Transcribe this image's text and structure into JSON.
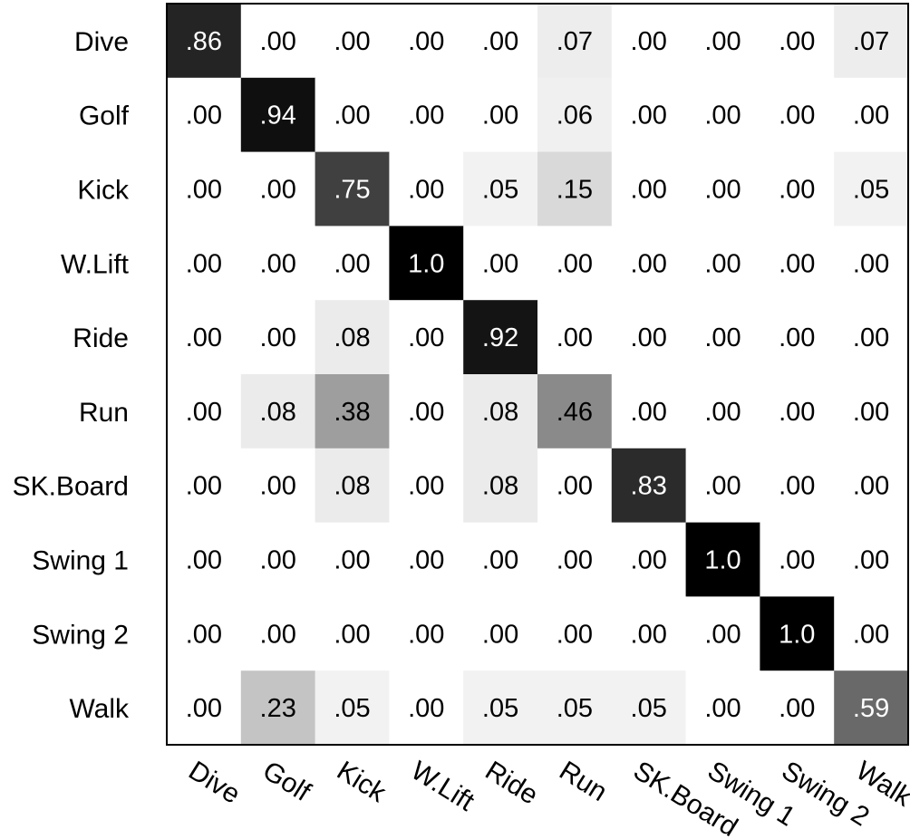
{
  "chart_data": {
    "type": "heatmap",
    "title": "",
    "xlabel": "",
    "ylabel": "",
    "rows": [
      "Dive",
      "Golf",
      "Kick",
      "W.Lift",
      "Ride",
      "Run",
      "SK.Board",
      "Swing 1",
      "Swing 2",
      "Walk"
    ],
    "columns": [
      "Dive",
      "Golf",
      "Kick",
      "W.Lift",
      "Ride",
      "Run",
      "SK.Board",
      "Swing 1",
      "Swing 2",
      "Walk"
    ],
    "cell_labels": [
      [
        ".86",
        ".00",
        ".00",
        ".00",
        ".00",
        ".07",
        ".00",
        ".00",
        ".00",
        ".07"
      ],
      [
        ".00",
        ".94",
        ".00",
        ".00",
        ".00",
        ".06",
        ".00",
        ".00",
        ".00",
        ".00"
      ],
      [
        ".00",
        ".00",
        ".75",
        ".00",
        ".05",
        ".15",
        ".00",
        ".00",
        ".00",
        ".05"
      ],
      [
        ".00",
        ".00",
        ".00",
        "1.0",
        ".00",
        ".00",
        ".00",
        ".00",
        ".00",
        ".00"
      ],
      [
        ".00",
        ".00",
        ".08",
        ".00",
        ".92",
        ".00",
        ".00",
        ".00",
        ".00",
        ".00"
      ],
      [
        ".00",
        ".08",
        ".38",
        ".00",
        ".08",
        ".46",
        ".00",
        ".00",
        ".00",
        ".00"
      ],
      [
        ".00",
        ".00",
        ".08",
        ".00",
        ".08",
        ".00",
        ".83",
        ".00",
        ".00",
        ".00"
      ],
      [
        ".00",
        ".00",
        ".00",
        ".00",
        ".00",
        ".00",
        ".00",
        "1.0",
        ".00",
        ".00"
      ],
      [
        ".00",
        ".00",
        ".00",
        ".00",
        ".00",
        ".00",
        ".00",
        ".00",
        "1.0",
        ".00"
      ],
      [
        ".00",
        ".23",
        ".05",
        ".00",
        ".05",
        ".05",
        ".05",
        ".00",
        ".00",
        ".59"
      ]
    ],
    "values": [
      [
        0.86,
        0.0,
        0.0,
        0.0,
        0.0,
        0.07,
        0.0,
        0.0,
        0.0,
        0.07
      ],
      [
        0.0,
        0.94,
        0.0,
        0.0,
        0.0,
        0.06,
        0.0,
        0.0,
        0.0,
        0.0
      ],
      [
        0.0,
        0.0,
        0.75,
        0.0,
        0.05,
        0.15,
        0.0,
        0.0,
        0.0,
        0.05
      ],
      [
        0.0,
        0.0,
        0.0,
        1.0,
        0.0,
        0.0,
        0.0,
        0.0,
        0.0,
        0.0
      ],
      [
        0.0,
        0.0,
        0.08,
        0.0,
        0.92,
        0.0,
        0.0,
        0.0,
        0.0,
        0.0
      ],
      [
        0.0,
        0.08,
        0.38,
        0.0,
        0.08,
        0.46,
        0.0,
        0.0,
        0.0,
        0.0
      ],
      [
        0.0,
        0.0,
        0.08,
        0.0,
        0.08,
        0.0,
        0.83,
        0.0,
        0.0,
        0.0
      ],
      [
        0.0,
        0.0,
        0.0,
        0.0,
        0.0,
        0.0,
        0.0,
        1.0,
        0.0,
        0.0
      ],
      [
        0.0,
        0.0,
        0.0,
        0.0,
        0.0,
        0.0,
        0.0,
        0.0,
        1.0,
        0.0
      ],
      [
        0.0,
        0.23,
        0.05,
        0.0,
        0.05,
        0.05,
        0.05,
        0.0,
        0.0,
        0.59
      ]
    ],
    "vmin": 0,
    "vmax": 1,
    "colormap": "grayscale, white at 0 to black at 1",
    "low_color": "#ffffff",
    "high_color": "#000000",
    "dark_cell_text_color": "#ffffff",
    "light_cell_text_color": "#000000"
  }
}
